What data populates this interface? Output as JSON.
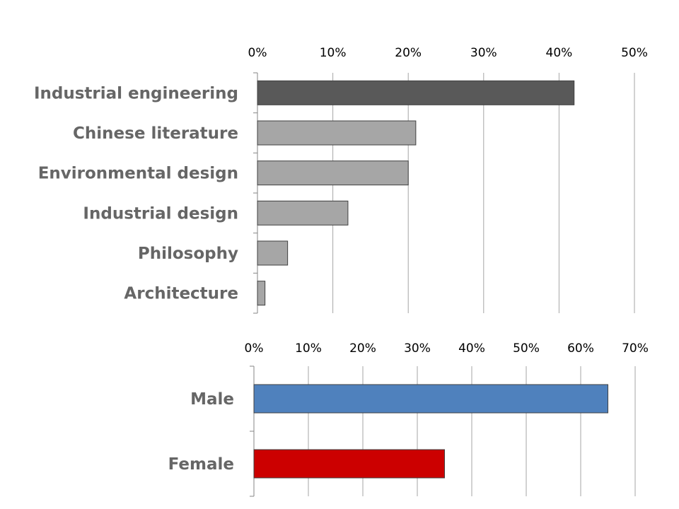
{
  "chart_data": [
    {
      "type": "bar",
      "orientation": "horizontal",
      "title": "",
      "xlabel": "",
      "ylabel": "",
      "xlim": [
        0,
        0.5
      ],
      "x_ticks": [
        "0%",
        "10%",
        "20%",
        "30%",
        "40%",
        "50%"
      ],
      "tick_position": "top",
      "grid": true,
      "categories": [
        "Industrial engineering",
        "Chinese literature",
        "Environmental design",
        "Industrial design",
        "Philosophy",
        "Architecture"
      ],
      "values": [
        0.42,
        0.21,
        0.2,
        0.12,
        0.04,
        0.01
      ],
      "colors": [
        "#595959",
        "#a6a6a6",
        "#a6a6a6",
        "#a6a6a6",
        "#a6a6a6",
        "#a6a6a6"
      ]
    },
    {
      "type": "bar",
      "orientation": "horizontal",
      "title": "",
      "xlabel": "",
      "ylabel": "",
      "xlim": [
        0,
        0.7
      ],
      "x_ticks": [
        "0%",
        "10%",
        "20%",
        "30%",
        "40%",
        "50%",
        "60%",
        "70%"
      ],
      "tick_position": "top",
      "grid": true,
      "categories": [
        "Male",
        "Female"
      ],
      "values": [
        0.65,
        0.35
      ],
      "colors": [
        "#4f81bd",
        "#cc0000"
      ]
    }
  ]
}
